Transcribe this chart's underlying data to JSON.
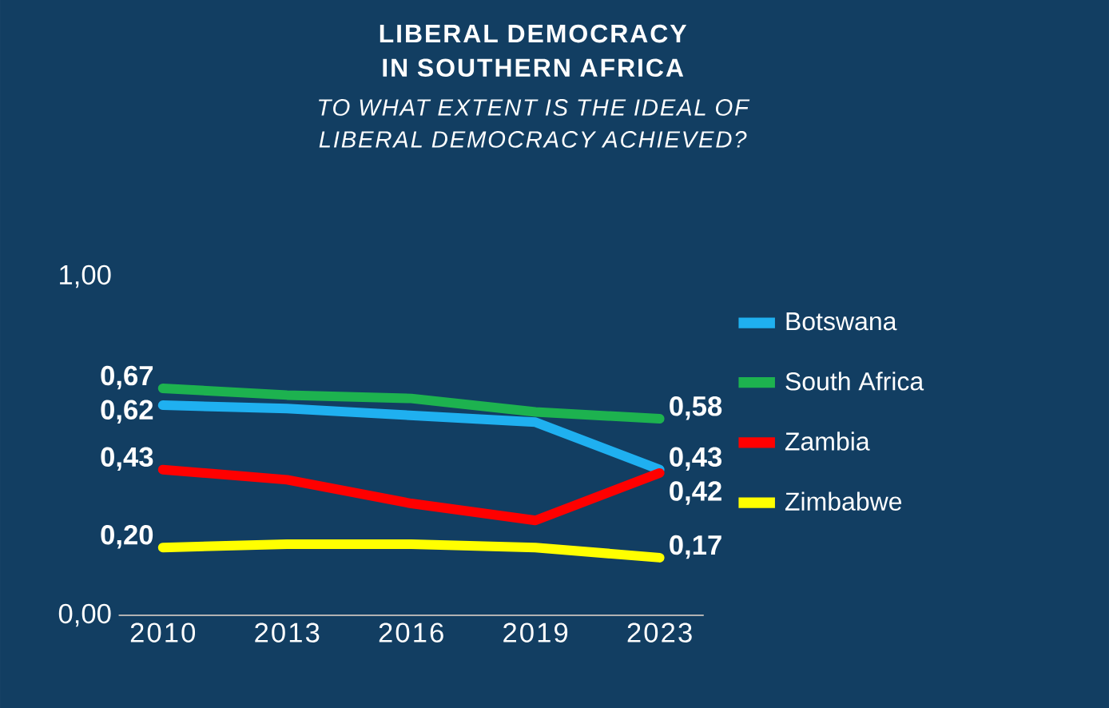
{
  "chart_data": {
    "type": "line",
    "title": "LIBERAL DEMOCRACY IN SOUTHERN AFRICA",
    "subtitle": "TO WHAT EXTENT IS THE IDEAL OF LIBERAL DEMOCRACY ACHIEVED?",
    "categories": [
      "2010",
      "2013",
      "2016",
      "2019",
      "2023"
    ],
    "series": [
      {
        "name": "Botswana",
        "color": "#1fb0f0",
        "values": [
          0.62,
          0.61,
          0.59,
          0.57,
          0.43
        ],
        "value_labels": [
          "0,62",
          null,
          null,
          null,
          "0,43"
        ]
      },
      {
        "name": "South Africa",
        "color": "#1db24f",
        "values": [
          0.67,
          0.65,
          0.64,
          0.6,
          0.58
        ],
        "value_labels": [
          "0,67",
          null,
          null,
          null,
          "0,58"
        ]
      },
      {
        "name": "Zambia",
        "color": "#ff0000",
        "values": [
          0.43,
          0.4,
          0.33,
          0.28,
          0.42
        ],
        "value_labels": [
          "0,43",
          null,
          null,
          null,
          "0,42"
        ]
      },
      {
        "name": "Zimbabwe",
        "color": "#ffff00",
        "values": [
          0.2,
          0.21,
          0.21,
          0.2,
          0.17
        ],
        "value_labels": [
          "0,20",
          null,
          null,
          null,
          "0,17"
        ]
      }
    ],
    "ylim": [
      0,
      1
    ],
    "yticks": [
      {
        "value": 0,
        "label": "0,00"
      },
      {
        "value": 1,
        "label": "1,00"
      }
    ],
    "grid": false,
    "legend": "right",
    "marker": "none",
    "line_style": "solid"
  }
}
